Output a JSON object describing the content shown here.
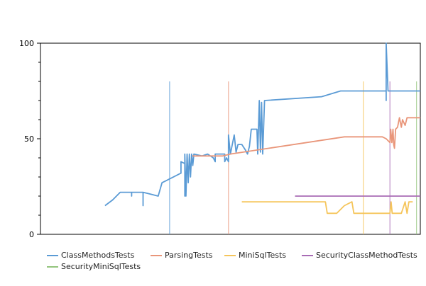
{
  "chart_data": {
    "type": "line",
    "title": "",
    "xlabel": "",
    "ylabel": "",
    "xlim": [
      0,
      100
    ],
    "ylim": [
      0,
      100
    ],
    "yticks": [
      0,
      50,
      100
    ],
    "legend_position": "bottom",
    "grid": false,
    "series": [
      {
        "name": "ClassMethodsTests",
        "color": "#5b9bd5",
        "points": [
          [
            17,
            15
          ],
          [
            19,
            18
          ],
          [
            20,
            20
          ],
          [
            21,
            22
          ],
          [
            24,
            22
          ],
          [
            24,
            20
          ],
          [
            24,
            22
          ],
          [
            27,
            22
          ],
          [
            27,
            15
          ],
          [
            27,
            22
          ],
          [
            29,
            21
          ],
          [
            31,
            20
          ],
          [
            32,
            27
          ],
          [
            33,
            28
          ],
          [
            37,
            32
          ],
          [
            37,
            38
          ],
          [
            38,
            37
          ],
          [
            38,
            20
          ],
          [
            38,
            42
          ],
          [
            38.3,
            20
          ],
          [
            38.6,
            42
          ],
          [
            38.9,
            27
          ],
          [
            39.2,
            42
          ],
          [
            39.5,
            30
          ],
          [
            39.8,
            42
          ],
          [
            40.1,
            36
          ],
          [
            40.4,
            42
          ],
          [
            42.5,
            41
          ],
          [
            44,
            42
          ],
          [
            45.5,
            40
          ],
          [
            46,
            38
          ],
          [
            46,
            42
          ],
          [
            48.5,
            42
          ],
          [
            48.5,
            38
          ],
          [
            49,
            40
          ],
          [
            49.5,
            38
          ],
          [
            49.5,
            52
          ],
          [
            50,
            42
          ],
          [
            51,
            52
          ],
          [
            51.5,
            43
          ],
          [
            52,
            47
          ],
          [
            53,
            47
          ],
          [
            54,
            44
          ],
          [
            54.5,
            42
          ],
          [
            55,
            46
          ],
          [
            55.5,
            55
          ],
          [
            56.5,
            55
          ],
          [
            57,
            55
          ],
          [
            57.2,
            42
          ],
          [
            57.6,
            70
          ],
          [
            57.9,
            43
          ],
          [
            58.2,
            69
          ],
          [
            58.5,
            42
          ],
          [
            59,
            70
          ],
          [
            74,
            72
          ],
          [
            79,
            75
          ],
          [
            90,
            75
          ],
          [
            91,
            75
          ],
          [
            91,
            70
          ],
          [
            91,
            100
          ],
          [
            91.5,
            75
          ],
          [
            100,
            75
          ]
        ]
      },
      {
        "name": "ParsingTests",
        "color": "#e9967a",
        "points": [
          [
            40,
            41
          ],
          [
            42,
            41
          ],
          [
            47,
            41
          ],
          [
            48,
            41
          ],
          [
            50,
            42
          ],
          [
            80,
            51
          ],
          [
            90,
            51
          ],
          [
            91,
            50
          ],
          [
            92,
            48
          ],
          [
            92.2,
            55
          ],
          [
            92.5,
            48
          ],
          [
            92.8,
            55
          ],
          [
            93,
            47
          ],
          [
            93.2,
            45
          ],
          [
            93.5,
            55
          ],
          [
            94,
            56
          ],
          [
            94.5,
            61
          ],
          [
            95,
            56
          ],
          [
            95.3,
            60
          ],
          [
            96,
            57
          ],
          [
            96.5,
            61
          ],
          [
            100,
            61
          ]
        ]
      },
      {
        "name": "MiniSqlTests",
        "color": "#f5c55b",
        "points": [
          [
            53,
            17
          ],
          [
            74,
            17
          ],
          [
            75,
            17
          ],
          [
            75.5,
            11
          ],
          [
            77,
            11
          ],
          [
            78,
            11
          ],
          [
            80,
            15
          ],
          [
            82,
            17
          ],
          [
            82.5,
            11
          ],
          [
            90,
            11
          ],
          [
            92,
            11
          ],
          [
            92.3,
            17
          ],
          [
            92.6,
            11
          ],
          [
            95,
            11
          ],
          [
            96,
            17
          ],
          [
            96.5,
            11
          ],
          [
            97,
            17
          ],
          [
            98,
            17
          ]
        ]
      },
      {
        "name": "SecurityClassMethodTests",
        "color": "#a86cb5",
        "points": [
          [
            67,
            20
          ],
          [
            100,
            20
          ]
        ]
      },
      {
        "name": "SecurityMiniSqlTests",
        "color": "#93c47d",
        "points": []
      }
    ],
    "vertical_lines": [
      {
        "series": "ClassMethodsTests",
        "x": 34,
        "color": "#5b9bd5"
      },
      {
        "series": "ParsingTests",
        "x": 49.5,
        "color": "#e9967a"
      },
      {
        "series": "MiniSqlTests",
        "x": 85,
        "color": "#f5c55b"
      },
      {
        "series": "SecurityClassMethodTests",
        "x": 92,
        "color": "#a86cb5"
      },
      {
        "series": "SecurityMiniSqlTests",
        "x": 99,
        "color": "#93c47d"
      }
    ]
  }
}
